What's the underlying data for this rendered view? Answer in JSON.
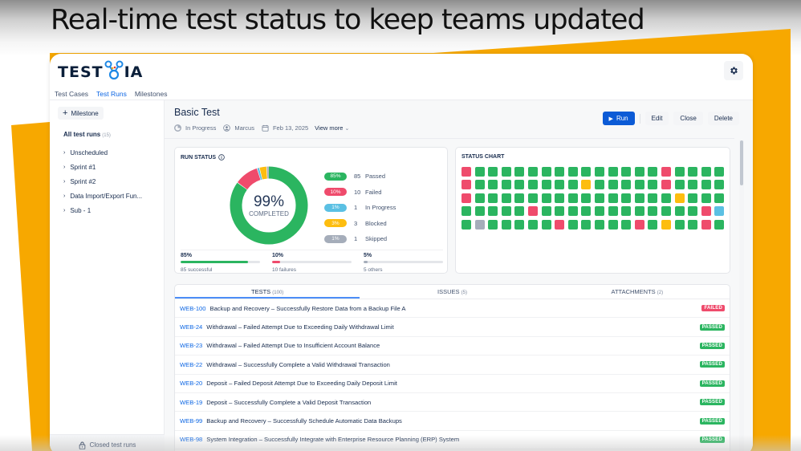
{
  "headline": "Real-time test status to keep teams updated",
  "app": {
    "logo_text_left": "TEST",
    "logo_text_right": "IA",
    "nav_tabs": [
      {
        "label": "Test Cases",
        "active": false
      },
      {
        "label": "Test Runs",
        "active": true
      },
      {
        "label": "Milestones",
        "active": false
      }
    ]
  },
  "sidebar": {
    "milestone_button": "Milestone",
    "all_runs_label": "All test runs",
    "all_runs_count": "(15)",
    "items": [
      {
        "label": "Unscheduled"
      },
      {
        "label": "Sprint #1"
      },
      {
        "label": "Sprint #2"
      },
      {
        "label": "Data Import/Export Fun..."
      },
      {
        "label": "Sub - 1"
      }
    ],
    "closed_runs": "Closed test runs"
  },
  "run": {
    "title": "Basic Test",
    "status": "In Progress",
    "assignee": "Marcus",
    "date": "Feb 13, 2025",
    "view_more": "View more",
    "actions": {
      "run": "Run",
      "edit": "Edit",
      "close": "Close",
      "delete": "Delete"
    }
  },
  "run_status": {
    "title": "RUN STATUS",
    "completed_pct": "99%",
    "completed_label": "COMPLETED",
    "legend": [
      {
        "pct": "85%",
        "count": "85",
        "label": "Passed",
        "color": "#2bb560"
      },
      {
        "pct": "10%",
        "count": "10",
        "label": "Failed",
        "color": "#ef4b6c"
      },
      {
        "pct": "1%",
        "count": "1",
        "label": "In Progress",
        "color": "#5bc0e3"
      },
      {
        "pct": "3%",
        "count": "3",
        "label": "Blocked",
        "color": "#fdbd0f"
      },
      {
        "pct": "1%",
        "count": "1",
        "label": "Skipped",
        "color": "#a5adba"
      }
    ],
    "bars": [
      {
        "pct": "85%",
        "caption": "85 successful",
        "fill": 85,
        "color": "#2bb560"
      },
      {
        "pct": "10%",
        "caption": "10 failures",
        "fill": 10,
        "color": "#ef4b6c"
      },
      {
        "pct": "5%",
        "caption": "5 others",
        "fill": 5,
        "color": "#a5adba"
      }
    ]
  },
  "status_chart": {
    "title": "STATUS CHART",
    "colors": {
      "G": "#2bb560",
      "R": "#ef4b6c",
      "Y": "#fdbd0f",
      "B": "#5bc0e3",
      "S": "#a5adba"
    },
    "rows": [
      "RGGGGGGGGGGGGGGRGGGG",
      "RGGGGGGGGYGGGGGRGGGG",
      "RGGGGGGGGGGGGGGGYGGG",
      "GGGGGRGGGGGGGGGGGGRB",
      "GSGGGGGRGGGGGRGYGGRG"
    ]
  },
  "tests_panel": {
    "tabs": [
      {
        "label": "TESTS",
        "count": "(100)",
        "active": true
      },
      {
        "label": "ISSUES",
        "count": "(5)",
        "active": false
      },
      {
        "label": "ATTACHMENTS",
        "count": "(2)",
        "active": false
      }
    ],
    "rows": [
      {
        "key": "WEB-100",
        "title": "Backup and Recovery – Successfully Restore Data from a Backup File A",
        "status": "FAILED"
      },
      {
        "key": "WEB-24",
        "title": "Withdrawal – Failed Attempt Due to Exceeding Daily Withdrawal Limit",
        "status": "PASSED"
      },
      {
        "key": "WEB-23",
        "title": "Withdrawal – Failed Attempt Due to Insufficient Account Balance",
        "status": "PASSED"
      },
      {
        "key": "WEB-22",
        "title": "Withdrawal – Successfully Complete a Valid Withdrawal Transaction",
        "status": "PASSED"
      },
      {
        "key": "WEB-20",
        "title": "Deposit – Failed Deposit Attempt Due to Exceeding Daily Deposit Limit",
        "status": "PASSED"
      },
      {
        "key": "WEB-19",
        "title": "Deposit – Successfully Complete a Valid Deposit Transaction",
        "status": "PASSED"
      },
      {
        "key": "WEB-99",
        "title": "Backup and Recovery – Successfully Schedule Automatic Data Backups",
        "status": "PASSED"
      },
      {
        "key": "WEB-98",
        "title": "System Integration – Successfully Integrate with Enterprise Resource Planning (ERP) System",
        "status": "PASSED"
      }
    ],
    "status_colors": {
      "FAILED": "#ef4b6c",
      "PASSED": "#2bb560"
    }
  }
}
